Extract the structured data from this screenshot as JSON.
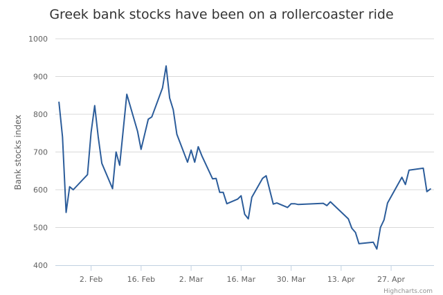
{
  "chart_data": {
    "type": "line",
    "title": "Greek bank stocks have been on a rollercoaster ride",
    "ylabel": "Bank stocks index",
    "xlabel": "",
    "ylim": [
      400,
      1000
    ],
    "yticks": [
      400,
      500,
      600,
      700,
      800,
      900,
      1000
    ],
    "xlim": [
      "2015-01-23",
      "2015-05-09"
    ],
    "xticks": [
      {
        "date": "2015-02-02",
        "label": "2. Feb"
      },
      {
        "date": "2015-02-16",
        "label": "16. Feb"
      },
      {
        "date": "2015-03-02",
        "label": "2. Mar"
      },
      {
        "date": "2015-03-16",
        "label": "16. Mar"
      },
      {
        "date": "2015-03-30",
        "label": "30. Mar"
      },
      {
        "date": "2015-04-13",
        "label": "13. Apr"
      },
      {
        "date": "2015-04-27",
        "label": "27. Apr"
      }
    ],
    "grid": true,
    "credits": "Highcharts.com",
    "colors": {
      "line": "#2b5c9a",
      "grid": "#d8d8d8",
      "axis": "#c0d0e0"
    },
    "series": [
      {
        "points": [
          [
            "2015-01-24",
            832
          ],
          [
            "2015-01-25",
            740
          ],
          [
            "2015-01-26",
            540
          ],
          [
            "2015-01-27",
            608
          ],
          [
            "2015-01-28",
            600
          ],
          [
            "2015-02-01",
            640
          ],
          [
            "2015-02-02",
            752
          ],
          [
            "2015-02-03",
            823
          ],
          [
            "2015-02-04",
            740
          ],
          [
            "2015-02-05",
            670
          ],
          [
            "2015-02-08",
            603
          ],
          [
            "2015-02-09",
            700
          ],
          [
            "2015-02-10",
            665
          ],
          [
            "2015-02-12",
            853
          ],
          [
            "2015-02-15",
            755
          ],
          [
            "2015-02-16",
            707
          ],
          [
            "2015-02-18",
            787
          ],
          [
            "2015-02-19",
            793
          ],
          [
            "2015-02-22",
            870
          ],
          [
            "2015-02-23",
            928
          ],
          [
            "2015-02-24",
            843
          ],
          [
            "2015-02-25",
            812
          ],
          [
            "2015-02-26",
            747
          ],
          [
            "2015-03-01",
            673
          ],
          [
            "2015-03-02",
            705
          ],
          [
            "2015-03-03",
            673
          ],
          [
            "2015-03-04",
            714
          ],
          [
            "2015-03-05",
            690
          ],
          [
            "2015-03-08",
            629
          ],
          [
            "2015-03-09",
            630
          ],
          [
            "2015-03-10",
            593
          ],
          [
            "2015-03-11",
            593
          ],
          [
            "2015-03-12",
            563
          ],
          [
            "2015-03-15",
            575
          ],
          [
            "2015-03-16",
            584
          ],
          [
            "2015-03-17",
            535
          ],
          [
            "2015-03-18",
            523
          ],
          [
            "2015-03-19",
            580
          ],
          [
            "2015-03-22",
            630
          ],
          [
            "2015-03-23",
            637
          ],
          [
            "2015-03-25",
            562
          ],
          [
            "2015-03-26",
            565
          ],
          [
            "2015-03-29",
            553
          ],
          [
            "2015-03-30",
            563
          ],
          [
            "2015-03-31",
            563
          ],
          [
            "2015-04-01",
            561
          ],
          [
            "2015-04-08",
            564
          ],
          [
            "2015-04-09",
            558
          ],
          [
            "2015-04-10",
            568
          ],
          [
            "2015-04-15",
            523
          ],
          [
            "2015-04-16",
            498
          ],
          [
            "2015-04-17",
            487
          ],
          [
            "2015-04-18",
            457
          ],
          [
            "2015-04-22",
            461
          ],
          [
            "2015-04-23",
            443
          ],
          [
            "2015-04-24",
            500
          ],
          [
            "2015-04-25",
            520
          ],
          [
            "2015-04-26",
            565
          ],
          [
            "2015-04-30",
            633
          ],
          [
            "2015-05-01",
            614
          ],
          [
            "2015-05-02",
            652
          ],
          [
            "2015-05-06",
            657
          ],
          [
            "2015-05-07",
            595
          ],
          [
            "2015-05-08",
            602
          ]
        ]
      }
    ]
  }
}
